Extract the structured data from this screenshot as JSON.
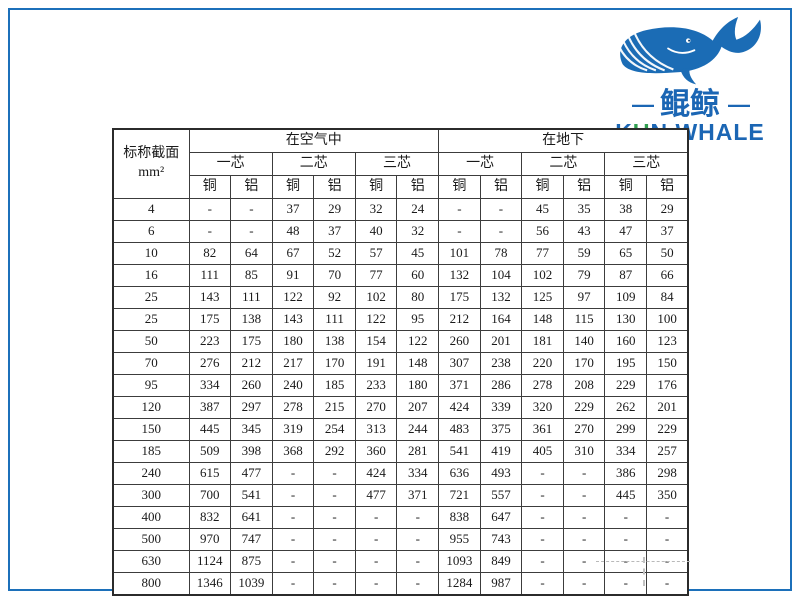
{
  "colors": {
    "frame_blue": "#1c70ba",
    "brand_blue": "#1b66b4",
    "brand_green": "#2f9e50"
  },
  "logo": {
    "dash_left": "—",
    "dash_right": "—",
    "brand_cn": "鲲鲸",
    "brand_en_k": "K",
    "brand_en_u": "U",
    "brand_en_rest": "N WHALE",
    "whale_icon": "whale-icon"
  },
  "table": {
    "corner_line1": "标称截面",
    "corner_line2": "mm²",
    "group_headers": [
      "在空气中",
      "在地下"
    ],
    "core_headers": [
      "一芯",
      "二芯",
      "三芯",
      "一芯",
      "二芯",
      "三芯"
    ],
    "material_headers": [
      "铜",
      "铝",
      "铜",
      "铝",
      "铜",
      "铝",
      "铜",
      "铝",
      "铜",
      "铝",
      "铜",
      "铝"
    ],
    "rows": [
      {
        "section": "4",
        "values": [
          "-",
          "-",
          "37",
          "29",
          "32",
          "24",
          "-",
          "-",
          "45",
          "35",
          "38",
          "29"
        ]
      },
      {
        "section": "6",
        "values": [
          "-",
          "-",
          "48",
          "37",
          "40",
          "32",
          "-",
          "-",
          "56",
          "43",
          "47",
          "37"
        ]
      },
      {
        "section": "10",
        "values": [
          "82",
          "64",
          "67",
          "52",
          "57",
          "45",
          "101",
          "78",
          "77",
          "59",
          "65",
          "50"
        ]
      },
      {
        "section": "16",
        "values": [
          "111",
          "85",
          "91",
          "70",
          "77",
          "60",
          "132",
          "104",
          "102",
          "79",
          "87",
          "66"
        ]
      },
      {
        "section": "25",
        "values": [
          "143",
          "111",
          "122",
          "92",
          "102",
          "80",
          "175",
          "132",
          "125",
          "97",
          "109",
          "84"
        ]
      },
      {
        "section": "25",
        "values": [
          "175",
          "138",
          "143",
          "111",
          "122",
          "95",
          "212",
          "164",
          "148",
          "115",
          "130",
          "100"
        ]
      },
      {
        "section": "50",
        "values": [
          "223",
          "175",
          "180",
          "138",
          "154",
          "122",
          "260",
          "201",
          "181",
          "140",
          "160",
          "123"
        ]
      },
      {
        "section": "70",
        "values": [
          "276",
          "212",
          "217",
          "170",
          "191",
          "148",
          "307",
          "238",
          "220",
          "170",
          "195",
          "150"
        ]
      },
      {
        "section": "95",
        "values": [
          "334",
          "260",
          "240",
          "185",
          "233",
          "180",
          "371",
          "286",
          "278",
          "208",
          "229",
          "176"
        ]
      },
      {
        "section": "120",
        "values": [
          "387",
          "297",
          "278",
          "215",
          "270",
          "207",
          "424",
          "339",
          "320",
          "229",
          "262",
          "201"
        ]
      },
      {
        "section": "150",
        "values": [
          "445",
          "345",
          "319",
          "254",
          "313",
          "244",
          "483",
          "375",
          "361",
          "270",
          "299",
          "229"
        ]
      },
      {
        "section": "185",
        "values": [
          "509",
          "398",
          "368",
          "292",
          "360",
          "281",
          "541",
          "419",
          "405",
          "310",
          "334",
          "257"
        ]
      },
      {
        "section": "240",
        "values": [
          "615",
          "477",
          "-",
          "-",
          "424",
          "334",
          "636",
          "493",
          "-",
          "-",
          "386",
          "298"
        ]
      },
      {
        "section": "300",
        "values": [
          "700",
          "541",
          "-",
          "-",
          "477",
          "371",
          "721",
          "557",
          "-",
          "-",
          "445",
          "350"
        ]
      },
      {
        "section": "400",
        "values": [
          "832",
          "641",
          "-",
          "-",
          "-",
          "-",
          "838",
          "647",
          "-",
          "-",
          "-",
          "-"
        ]
      },
      {
        "section": "500",
        "values": [
          "970",
          "747",
          "-",
          "-",
          "-",
          "-",
          "955",
          "743",
          "-",
          "-",
          "-",
          "-"
        ]
      },
      {
        "section": "630",
        "values": [
          "1124",
          "875",
          "-",
          "-",
          "-",
          "-",
          "1093",
          "849",
          "-",
          "-",
          "-",
          "-"
        ]
      },
      {
        "section": "800",
        "values": [
          "1346",
          "1039",
          "-",
          "-",
          "-",
          "-",
          "1284",
          "987",
          "-",
          "-",
          "-",
          "-"
        ]
      }
    ]
  }
}
